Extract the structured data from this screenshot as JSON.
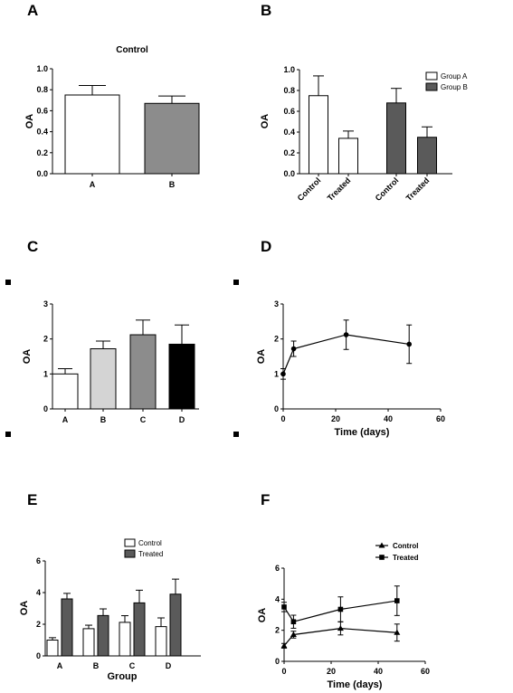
{
  "chart_data": [
    {
      "id": "A",
      "panel_label": "A",
      "type": "bar",
      "title": "Control",
      "ylabel": "OA",
      "xlabel": "",
      "ylim": [
        0,
        1.0
      ],
      "yticks": [
        "0.0",
        "0.2",
        "0.4",
        "0.6",
        "0.8",
        "1.0"
      ],
      "categories": [
        "A",
        "B"
      ],
      "values": [
        0.75,
        0.67
      ],
      "errors": [
        0.09,
        0.07
      ],
      "colors": [
        "#ffffff",
        "#8c8c8c"
      ]
    },
    {
      "id": "B",
      "panel_label": "B",
      "type": "bar",
      "title": "",
      "ylabel": "OA",
      "xlabel": "",
      "ylim": [
        0,
        1.0
      ],
      "yticks": [
        "0.0",
        "0.2",
        "0.4",
        "0.6",
        "0.8",
        "1.0"
      ],
      "categories": [
        "Control",
        "Treated",
        "Control",
        "Treated"
      ],
      "values": [
        0.75,
        0.34,
        0.68,
        0.35
      ],
      "errors": [
        0.19,
        0.07,
        0.14,
        0.1
      ],
      "colors": [
        "#ffffff",
        "#ffffff",
        "#5a5a5a",
        "#5a5a5a"
      ],
      "legend": [
        {
          "label": "Group A",
          "color": "#ffffff"
        },
        {
          "label": "Group B",
          "color": "#5a5a5a"
        }
      ],
      "legend_position": "top-right"
    },
    {
      "id": "C",
      "panel_label": "C",
      "type": "bar",
      "title": "",
      "ylabel": "OA",
      "xlabel": "",
      "ylim": [
        0,
        3
      ],
      "yticks": [
        "0",
        "1",
        "2",
        "3"
      ],
      "categories": [
        "A",
        "B",
        "C",
        "D"
      ],
      "values": [
        1.0,
        1.72,
        2.12,
        1.85
      ],
      "errors": [
        0.15,
        0.22,
        0.42,
        0.55
      ],
      "colors": [
        "#ffffff",
        "#d4d4d4",
        "#8c8c8c",
        "#000000"
      ]
    },
    {
      "id": "D",
      "panel_label": "D",
      "type": "line",
      "title": "",
      "ylabel": "OA",
      "xlabel": "Time (days)",
      "xlim": [
        0,
        60
      ],
      "xticks": [
        "0",
        "20",
        "40",
        "60"
      ],
      "ylim": [
        0,
        3
      ],
      "yticks": [
        "0",
        "1",
        "2",
        "3"
      ],
      "series": [
        {
          "x": [
            0,
            4,
            24,
            48
          ],
          "values": [
            1.0,
            1.72,
            2.12,
            1.85
          ],
          "errors": [
            0.15,
            0.22,
            0.42,
            0.55
          ],
          "marker": "circle"
        }
      ]
    },
    {
      "id": "E",
      "panel_label": "E",
      "type": "bar",
      "title": "",
      "ylabel": "OA",
      "xlabel": "Group",
      "ylim": [
        0,
        6
      ],
      "yticks": [
        "0",
        "2",
        "4",
        "6"
      ],
      "categories": [
        "A",
        "B",
        "C",
        "D"
      ],
      "series": [
        {
          "name": "Control",
          "values": [
            1.0,
            1.72,
            2.12,
            1.85
          ],
          "errors": [
            0.15,
            0.22,
            0.42,
            0.55
          ],
          "color": "#ffffff"
        },
        {
          "name": "Treated",
          "values": [
            3.6,
            2.55,
            3.35,
            3.9
          ],
          "errors": [
            0.35,
            0.42,
            0.8,
            0.95
          ],
          "color": "#5a5a5a"
        }
      ],
      "legend_position": "top-right"
    },
    {
      "id": "F",
      "panel_label": "F",
      "type": "line",
      "title": "",
      "ylabel": "OA",
      "xlabel": "Time (days)",
      "xlim": [
        0,
        60
      ],
      "xticks": [
        "0",
        "20",
        "40",
        "60"
      ],
      "ylim": [
        0,
        6
      ],
      "yticks": [
        "0",
        "2",
        "4",
        "6"
      ],
      "series": [
        {
          "name": "Control",
          "x": [
            0,
            4,
            24,
            48
          ],
          "values": [
            1.0,
            1.72,
            2.12,
            1.85
          ],
          "errors": [
            0.15,
            0.22,
            0.42,
            0.55
          ],
          "marker": "triangle"
        },
        {
          "name": "Treated",
          "x": [
            0,
            4,
            24,
            48
          ],
          "values": [
            3.5,
            2.55,
            3.35,
            3.9
          ],
          "errors": [
            0.3,
            0.42,
            0.8,
            0.95
          ],
          "marker": "square"
        }
      ],
      "legend_position": "top-right"
    }
  ]
}
